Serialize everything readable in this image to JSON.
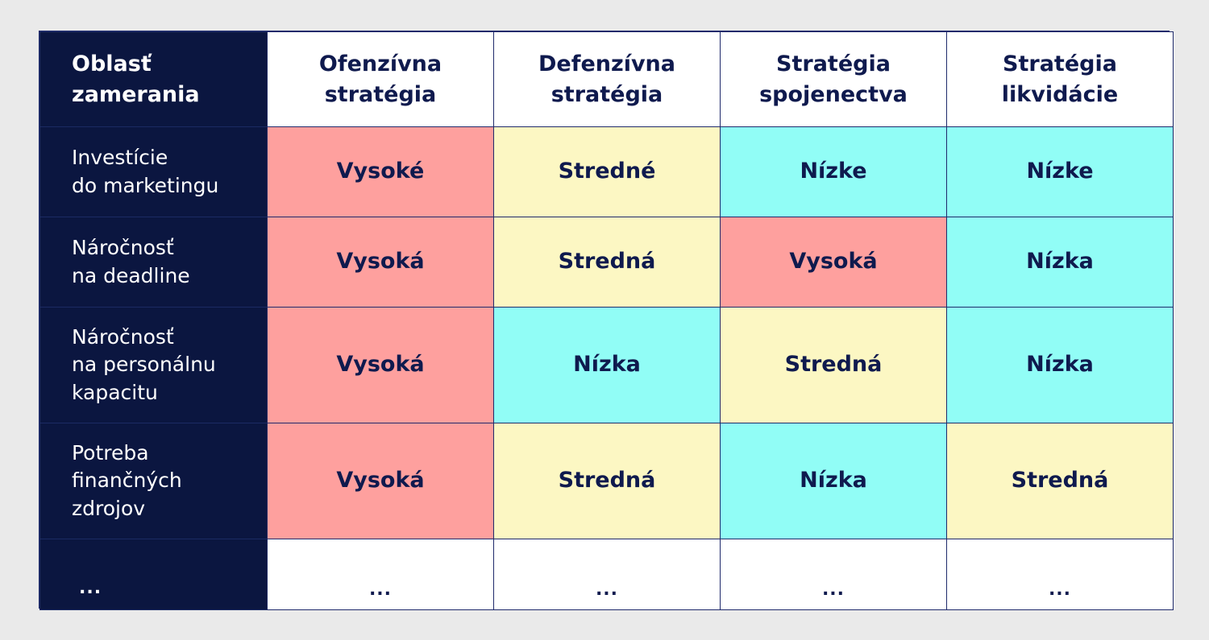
{
  "header": {
    "corner": "Oblasť\nzamerania",
    "columns": [
      "Ofenzívna\nstratégia",
      "Defenzívna\nstratégia",
      "Stratégia\nspojenectva",
      "Stratégia\nlikvidácie"
    ]
  },
  "rows": [
    {
      "label": "Investície\ndo marketingu",
      "cells": [
        "Vysoké",
        "Stredné",
        "Nízke",
        "Nízke"
      ]
    },
    {
      "label": "Náročnosť\nna deadline",
      "cells": [
        "Vysoká",
        "Stredná",
        "Vysoká",
        "Nízka"
      ]
    },
    {
      "label": "Náročnosť\nna personálnu\nkapacitu",
      "cells": [
        "Vysoká",
        "Nízka",
        "Stredná",
        "Nízka"
      ]
    },
    {
      "label": "Potreba\nfinančných\nzdrojov",
      "cells": [
        "Vysoká",
        "Stredná",
        "Nízka",
        "Stredná"
      ]
    },
    {
      "label": "...",
      "cells": [
        "...",
        "...",
        "...",
        "..."
      ]
    }
  ],
  "colors": {
    "label_column_bg": "#0b1640",
    "text": "#0f1a4e",
    "high": "#fea09e",
    "medium": "#fcf7c3",
    "low": "#91fdf6",
    "page_bg": "#eaeaea"
  }
}
